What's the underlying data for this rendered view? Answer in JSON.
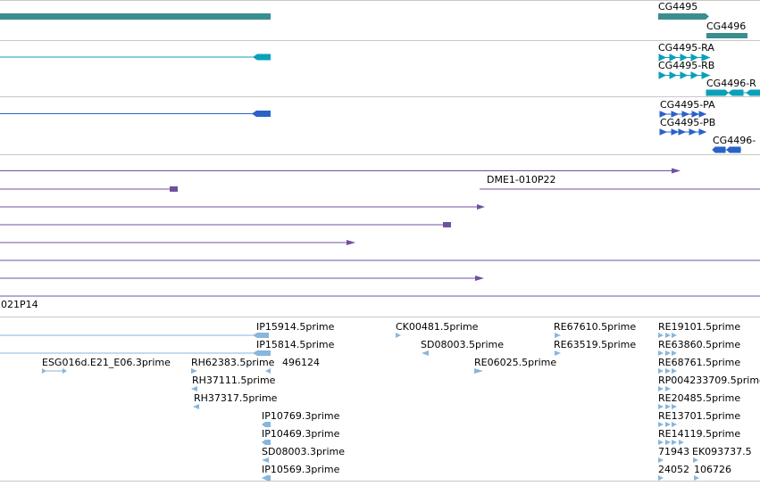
{
  "colors": {
    "gene": "#3a8e8e",
    "transcript": "#0aa0b8",
    "protein": "#2a62c8",
    "clone": "#7050a0",
    "est": "#88b6dc",
    "divider": "#c8c8c8"
  },
  "genes": {
    "labels": [
      "CG4495",
      "CG4496"
    ]
  },
  "transcripts": {
    "labels": [
      "CG4495-RA",
      "CG4495-RB",
      "CG4496-R"
    ]
  },
  "proteins": {
    "labels": [
      "CG4495-PA",
      "CG4495-PB",
      "CG4496-"
    ]
  },
  "clones": {
    "labels": [
      "DME1-010P22",
      "021P14"
    ]
  },
  "ests": {
    "labels": [
      "IP15914.5prime",
      "IP15814.5prime",
      "ESG016d.E21_E06.3prime",
      "RH62383.5prime",
      "496124",
      "RH37111.5prime",
      "RH37317.5prime",
      "IP10769.3prime",
      "IP10469.3prime",
      "SD08003.3prime",
      "IP10569.3prime",
      "CK00481.5prime",
      "SD08003.5prime",
      "RE06025.5prime",
      "RE67610.5prime",
      "RE63519.5prime",
      "RE19101.5prime",
      "RE63860.5prime",
      "RE68761.5prime",
      "RP004233709.5prime",
      "RE20485.5prime",
      "RE13701.5prime",
      "RE14119.5prime",
      "71943",
      "EK093737.5",
      "24052",
      "106726"
    ]
  }
}
